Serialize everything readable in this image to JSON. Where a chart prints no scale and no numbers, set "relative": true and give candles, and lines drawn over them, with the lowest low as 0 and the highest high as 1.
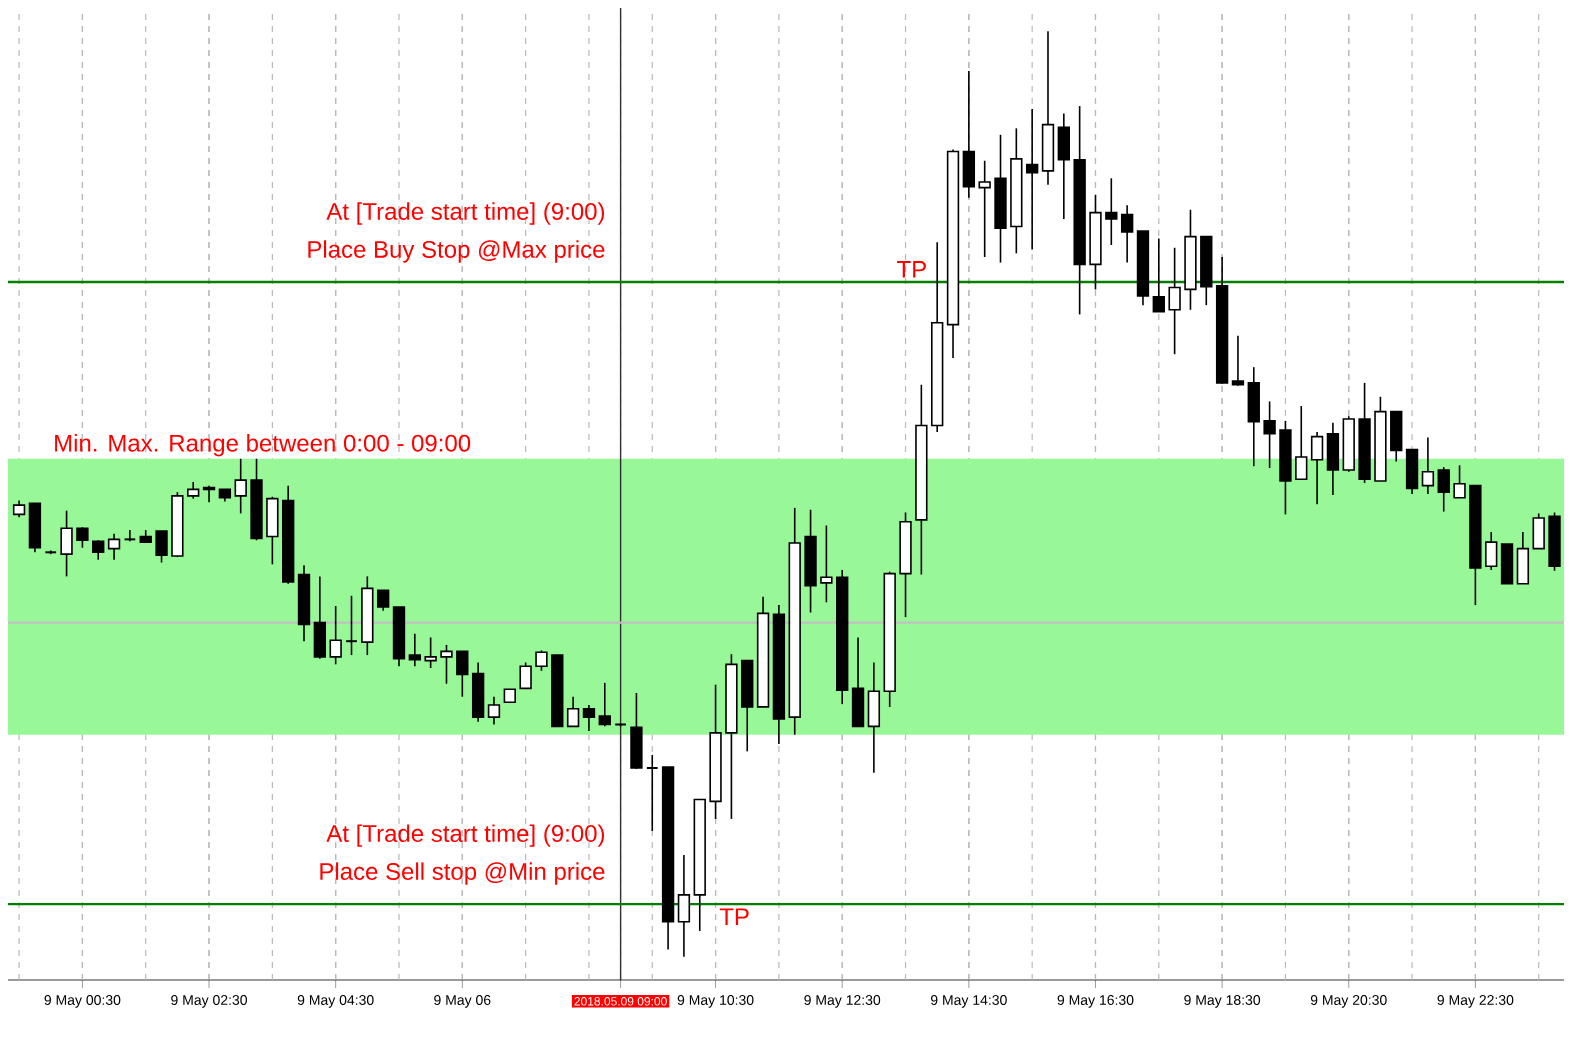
{
  "chart_data": {
    "type": "candlestick",
    "categories": [
      null,
      null,
      null,
      null,
      "9 May 00:30",
      null,
      null,
      null,
      null,
      null,
      null,
      null,
      "9 May 02:30",
      null,
      null,
      null,
      null,
      null,
      null,
      null,
      "9 May 04:30",
      null,
      null,
      null,
      null,
      null,
      null,
      null,
      "9 May 06",
      null,
      null,
      null,
      null,
      null,
      null,
      null,
      null,
      null,
      "2018.05.09 09:00",
      null,
      null,
      null,
      null,
      null,
      "9 May 10:30",
      null,
      null,
      null,
      null,
      null,
      null,
      null,
      "9 May 12:30",
      null,
      null,
      null,
      null,
      null,
      null,
      null,
      "9 May 14:30",
      null,
      null,
      null,
      null,
      null,
      null,
      null,
      "9 May 16:30",
      null,
      null,
      null,
      null,
      null,
      null,
      null,
      "9 May 18:30",
      null,
      null,
      null,
      null,
      null,
      null,
      null,
      "9 May 20:30",
      null,
      null,
      null,
      null,
      null,
      null,
      null,
      "9 May 22:30",
      null,
      null,
      null,
      null,
      null
    ],
    "ohlc": [
      [
        0.478,
        0.493,
        0.475,
        0.488
      ],
      [
        0.49,
        0.49,
        0.437,
        0.442
      ],
      [
        0.437,
        0.439,
        0.435,
        0.437
      ],
      [
        0.435,
        0.482,
        0.411,
        0.463
      ],
      [
        0.463,
        0.464,
        0.442,
        0.45
      ],
      [
        0.449,
        0.45,
        0.429,
        0.437
      ],
      [
        0.441,
        0.457,
        0.429,
        0.451
      ],
      [
        0.451,
        0.461,
        0.449,
        0.451
      ],
      [
        0.454,
        0.461,
        0.448,
        0.448
      ],
      [
        0.46,
        0.46,
        0.426,
        0.434
      ],
      [
        0.433,
        0.502,
        0.432,
        0.498
      ],
      [
        0.498,
        0.513,
        0.495,
        0.505
      ],
      [
        0.507,
        0.509,
        0.491,
        0.505
      ],
      [
        0.505,
        0.505,
        0.492,
        0.496
      ],
      [
        0.498,
        0.538,
        0.479,
        0.515
      ],
      [
        0.515,
        0.538,
        0.45,
        0.452
      ],
      [
        0.454,
        0.497,
        0.424,
        0.495
      ],
      [
        0.493,
        0.509,
        0.403,
        0.405
      ],
      [
        0.413,
        0.423,
        0.341,
        0.359
      ],
      [
        0.361,
        0.411,
        0.322,
        0.324
      ],
      [
        0.324,
        0.379,
        0.316,
        0.342
      ],
      [
        0.341,
        0.39,
        0.326,
        0.341
      ],
      [
        0.34,
        0.411,
        0.326,
        0.398
      ],
      [
        0.396,
        0.396,
        0.374,
        0.378
      ],
      [
        0.378,
        0.378,
        0.314,
        0.322
      ],
      [
        0.326,
        0.349,
        0.314,
        0.321
      ],
      [
        0.32,
        0.345,
        0.312,
        0.324
      ],
      [
        0.324,
        0.337,
        0.295,
        0.33
      ],
      [
        0.33,
        0.33,
        0.281,
        0.305
      ],
      [
        0.306,
        0.318,
        0.254,
        0.259
      ],
      [
        0.259,
        0.281,
        0.251,
        0.272
      ],
      [
        0.275,
        0.289,
        0.275,
        0.289
      ],
      [
        0.29,
        0.318,
        0.29,
        0.314
      ],
      [
        0.314,
        0.331,
        0.309,
        0.329
      ],
      [
        0.326,
        0.326,
        0.249,
        0.249
      ],
      [
        0.249,
        0.281,
        0.249,
        0.268
      ],
      [
        0.268,
        0.272,
        0.244,
        0.259
      ],
      [
        0.26,
        0.296,
        0.249,
        0.251
      ],
      [
        0.251,
        0.252,
        0.249,
        0.251
      ],
      [
        0.248,
        0.285,
        0.203,
        0.204
      ],
      [
        0.204,
        0.218,
        0.136,
        0.204
      ],
      [
        0.205,
        0.205,
        0.008,
        0.038
      ],
      [
        0.038,
        0.11,
        0,
        0.067
      ],
      [
        0.067,
        0.17,
        0.028,
        0.17
      ],
      [
        0.168,
        0.294,
        0.149,
        0.242
      ],
      [
        0.242,
        0.327,
        0.149,
        0.316
      ],
      [
        0.32,
        0.32,
        0.222,
        0.27
      ],
      [
        0.27,
        0.389,
        0.27,
        0.371
      ],
      [
        0.37,
        0.38,
        0.23,
        0.257
      ],
      [
        0.259,
        0.485,
        0.24,
        0.447
      ],
      [
        0.454,
        0.483,
        0.372,
        0.401
      ],
      [
        0.404,
        0.466,
        0.383,
        0.41
      ],
      [
        0.41,
        0.418,
        0.273,
        0.288
      ],
      [
        0.29,
        0.345,
        0.249,
        0.249
      ],
      [
        0.249,
        0.318,
        0.199,
        0.287
      ],
      [
        0.287,
        0.416,
        0.27,
        0.414
      ],
      [
        0.414,
        0.48,
        0.367,
        0.47
      ],
      [
        0.472,
        0.618,
        0.413,
        0.574
      ],
      [
        0.574,
        0.772,
        0.567,
        0.685
      ],
      [
        0.683,
        0.872,
        0.647,
        0.87
      ],
      [
        0.87,
        0.957,
        0.82,
        0.832
      ],
      [
        0.831,
        0.86,
        0.756,
        0.837
      ],
      [
        0.841,
        0.888,
        0.75,
        0.787
      ],
      [
        0.789,
        0.895,
        0.76,
        0.862
      ],
      [
        0.856,
        0.916,
        0.764,
        0.847
      ],
      [
        0.849,
        1,
        0.834,
        0.899
      ],
      [
        0.896,
        0.911,
        0.797,
        0.861
      ],
      [
        0.861,
        0.919,
        0.694,
        0.748
      ],
      [
        0.748,
        0.823,
        0.721,
        0.804
      ],
      [
        0.804,
        0.841,
        0.769,
        0.797
      ],
      [
        0.802,
        0.812,
        0.75,
        0.783
      ],
      [
        0.784,
        0.784,
        0.704,
        0.714
      ],
      [
        0.713,
        0.776,
        0.697,
        0.697
      ],
      [
        0.699,
        0.766,
        0.651,
        0.723
      ],
      [
        0.721,
        0.807,
        0.699,
        0.778
      ],
      [
        0.778,
        0.778,
        0.704,
        0.724
      ],
      [
        0.725,
        0.756,
        0.619,
        0.62
      ],
      [
        0.622,
        0.671,
        0.617,
        0.618
      ],
      [
        0.62,
        0.637,
        0.53,
        0.578
      ],
      [
        0.579,
        0.6,
        0.528,
        0.565
      ],
      [
        0.569,
        0.579,
        0.478,
        0.514
      ],
      [
        0.516,
        0.595,
        0.516,
        0.54
      ],
      [
        0.537,
        0.567,
        0.489,
        0.562
      ],
      [
        0.565,
        0.577,
        0.499,
        0.526
      ],
      [
        0.526,
        0.584,
        0.524,
        0.581
      ],
      [
        0.581,
        0.62,
        0.512,
        0.516
      ],
      [
        0.514,
        0.605,
        0.514,
        0.589
      ],
      [
        0.589,
        0.589,
        0.535,
        0.547
      ],
      [
        0.548,
        0.548,
        0.5,
        0.506
      ],
      [
        0.509,
        0.561,
        0.5,
        0.524
      ],
      [
        0.526,
        0.529,
        0.481,
        0.502
      ],
      [
        0.496,
        0.531,
        0.496,
        0.511
      ],
      [
        0.509,
        0.509,
        0.38,
        0.42
      ],
      [
        0.422,
        0.459,
        0.418,
        0.448
      ],
      [
        0.446,
        0.446,
        0.403,
        0.403
      ],
      [
        0.403,
        0.459,
        0.403,
        0.441
      ],
      [
        0.441,
        0.479,
        0.441,
        0.474
      ],
      [
        0.476,
        0.48,
        0.417,
        0.422
      ]
    ],
    "relative": true,
    "tick_labels": "x",
    "grid": "x",
    "bands": [
      {
        "axis": "y",
        "from": 0.24,
        "to": 0.538,
        "label": "Min. Max. Range between 0:00 - 09:00",
        "color": "#98f898"
      }
    ],
    "ref_lines": [
      {
        "axis": "x",
        "value": "2018.05.09 09:00",
        "color": "#303030"
      },
      {
        "axis": "y",
        "value": 0.361,
        "label": null,
        "color": "#c0c0c0"
      },
      {
        "axis": "y",
        "value": 0.729,
        "label": "TP",
        "color": "#008000"
      },
      {
        "axis": "y",
        "value": 0.057,
        "label": "TP",
        "color": "#008000"
      }
    ],
    "annotations": [
      "At [Trade start time] (9:00)",
      "Place Buy Stop @Max price",
      "At [Trade start time] (9:00)",
      "Place Sell stop @Min price"
    ]
  }
}
